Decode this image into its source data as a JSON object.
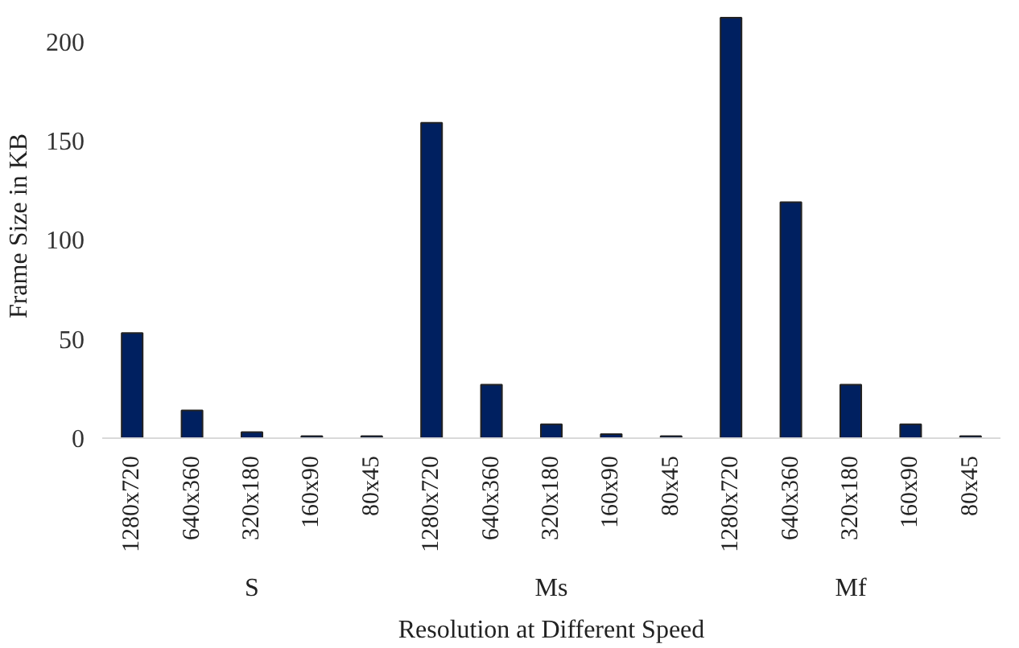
{
  "chart_data": {
    "type": "bar",
    "xlabel": "Resolution at Different Speed",
    "ylabel": "Frame Size in KB",
    "categories": [
      "1280x720",
      "640x360",
      "320x180",
      "160x90",
      "80x45",
      "1280x720",
      "640x360",
      "320x180",
      "160x90",
      "80x45",
      "1280x720",
      "640x360",
      "320x180",
      "160x90",
      "80x45"
    ],
    "values": [
      53,
      14,
      3,
      1,
      1,
      159,
      27,
      7,
      2,
      1,
      212,
      119,
      27,
      7,
      1
    ],
    "color": "#002060",
    "annotations": [
      "S",
      "Ms",
      "Mf"
    ],
    "ylim": [
      0,
      214
    ],
    "yticks": [
      0,
      50,
      100,
      150,
      200
    ],
    "grid": false
  }
}
